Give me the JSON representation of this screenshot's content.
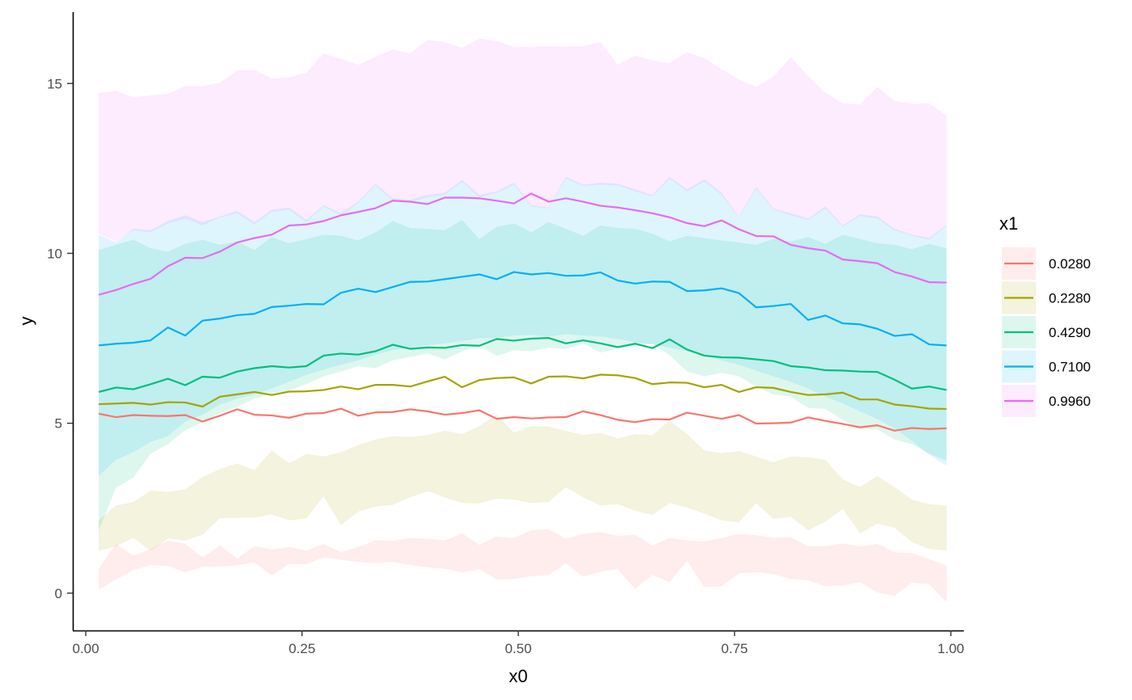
{
  "chart_data": {
    "type": "line",
    "title": "",
    "xlabel": "x0",
    "ylabel": "y",
    "xlim": [
      -0.015,
      1.015
    ],
    "ylim": [
      -1.1,
      17.1
    ],
    "x_ticks": [
      0,
      0.25,
      0.5,
      0.75,
      1.0
    ],
    "x_tick_labels": [
      "0.00",
      "0.25",
      "0.50",
      "0.75",
      "1.00"
    ],
    "y_ticks": [
      0,
      5,
      10,
      15
    ],
    "y_tick_labels": [
      "0",
      "5",
      "10",
      "15"
    ],
    "grid": false,
    "ribbon_opacity": 0.13,
    "x_start": 0.015,
    "x_step": 0.02,
    "legend": {
      "title": "x1",
      "position": "right"
    },
    "series": [
      {
        "name": "0.0280",
        "color": "#F8766D",
        "values": [
          5.28,
          5.18,
          5.24,
          5.22,
          5.21,
          5.24,
          5.05,
          5.22,
          5.41,
          5.25,
          5.23,
          5.16,
          5.28,
          5.3,
          5.43,
          5.22,
          5.32,
          5.33,
          5.41,
          5.35,
          5.25,
          5.3,
          5.38,
          5.13,
          5.18,
          5.14,
          5.17,
          5.18,
          5.35,
          5.24,
          5.1,
          5.03,
          5.12,
          5.11,
          5.31,
          5.22,
          5.13,
          5.24,
          4.99,
          5.0,
          5.02,
          5.17,
          5.07,
          4.98,
          4.88,
          4.94,
          4.78,
          4.86,
          4.83,
          4.85
        ],
        "lower": [
          0.1,
          0.4,
          0.68,
          0.82,
          0.8,
          0.61,
          0.78,
          0.78,
          0.82,
          0.9,
          0.52,
          0.86,
          0.85,
          1.05,
          0.98,
          0.92,
          0.88,
          0.92,
          0.83,
          0.76,
          0.72,
          0.6,
          0.71,
          0.4,
          0.42,
          0.5,
          0.53,
          0.88,
          0.48,
          0.63,
          0.71,
          0.12,
          0.54,
          0.32,
          0.95,
          0.18,
          0.2,
          0.58,
          0.62,
          0.56,
          0.42,
          0.38,
          0.2,
          0.22,
          0.32,
          0.02,
          -0.08,
          0.31,
          0.26,
          -0.27
        ],
        "upper": [
          0.72,
          1.45,
          1.1,
          1.3,
          1.55,
          1.45,
          1.05,
          1.4,
          1.02,
          1.38,
          1.28,
          1.36,
          1.25,
          1.45,
          1.2,
          1.36,
          1.56,
          1.54,
          1.62,
          1.6,
          1.55,
          1.76,
          1.42,
          1.67,
          1.62,
          1.85,
          1.88,
          1.6,
          1.75,
          1.8,
          1.68,
          1.72,
          1.4,
          1.62,
          1.55,
          1.52,
          1.62,
          1.74,
          1.7,
          1.63,
          1.65,
          1.38,
          1.38,
          1.46,
          1.38,
          1.45,
          1.2,
          1.18,
          1.0,
          0.82
        ]
      },
      {
        "name": "0.2280",
        "color": "#A3A500",
        "values": [
          5.56,
          5.58,
          5.6,
          5.55,
          5.62,
          5.61,
          5.49,
          5.78,
          5.85,
          5.92,
          5.83,
          5.93,
          5.94,
          5.98,
          6.08,
          6.0,
          6.13,
          6.13,
          6.08,
          6.23,
          6.37,
          6.06,
          6.27,
          6.33,
          6.35,
          6.17,
          6.37,
          6.38,
          6.32,
          6.43,
          6.41,
          6.33,
          6.15,
          6.2,
          6.19,
          6.06,
          6.13,
          5.92,
          6.06,
          6.04,
          5.92,
          5.83,
          5.85,
          5.9,
          5.7,
          5.7,
          5.55,
          5.5,
          5.43,
          5.42
        ],
        "lower": [
          1.24,
          1.38,
          1.62,
          1.24,
          1.6,
          1.55,
          1.72,
          2.2,
          2.22,
          2.22,
          2.32,
          2.14,
          2.2,
          2.85,
          2.0,
          2.4,
          2.55,
          2.6,
          2.82,
          3.0,
          2.82,
          2.65,
          2.64,
          2.78,
          2.75,
          2.65,
          2.68,
          3.12,
          2.82,
          2.58,
          2.62,
          2.42,
          2.3,
          2.65,
          2.52,
          2.34,
          2.14,
          2.08,
          2.65,
          2.18,
          2.25,
          1.85,
          2.1,
          2.48,
          1.75,
          2.05,
          1.92,
          1.5,
          1.3,
          1.25
        ],
        "upper": [
          2.15,
          2.58,
          2.68,
          3.02,
          2.98,
          3.05,
          3.42,
          3.65,
          3.82,
          3.62,
          4.2,
          3.82,
          4.1,
          4.02,
          4.15,
          4.36,
          4.52,
          4.62,
          4.6,
          4.65,
          4.78,
          4.68,
          4.92,
          5.25,
          4.72,
          4.92,
          4.9,
          4.78,
          4.65,
          4.72,
          4.55,
          4.68,
          4.65,
          5.08,
          4.68,
          4.2,
          4.12,
          4.18,
          4.02,
          3.85,
          4.02,
          4.0,
          3.92,
          3.35,
          3.12,
          3.45,
          3.12,
          2.75,
          2.62,
          2.58
        ]
      },
      {
        "name": "0.4290",
        "color": "#00BF7D",
        "values": [
          5.92,
          6.05,
          6.0,
          6.15,
          6.31,
          6.12,
          6.37,
          6.34,
          6.52,
          6.62,
          6.68,
          6.64,
          6.68,
          6.99,
          7.05,
          7.02,
          7.12,
          7.31,
          7.19,
          7.23,
          7.22,
          7.3,
          7.28,
          7.48,
          7.43,
          7.49,
          7.51,
          7.35,
          7.44,
          7.35,
          7.24,
          7.34,
          7.21,
          7.47,
          7.17,
          6.99,
          6.94,
          6.93,
          6.88,
          6.83,
          6.68,
          6.64,
          6.56,
          6.55,
          6.52,
          6.51,
          6.28,
          6.02,
          6.08,
          5.98
        ],
        "lower": [
          1.85,
          3.1,
          3.4,
          4.1,
          4.38,
          4.8,
          5.02,
          5.3,
          5.48,
          5.72,
          5.88,
          5.96,
          6.15,
          6.38,
          6.52,
          6.68,
          6.62,
          6.85,
          6.95,
          7.05,
          6.88,
          7.12,
          7.28,
          6.98,
          7.15,
          7.12,
          7.22,
          7.18,
          7.35,
          7.08,
          7.2,
          7.25,
          7.35,
          7.0,
          6.52,
          6.38,
          6.48,
          6.38,
          6.08,
          5.85,
          5.78,
          5.45,
          5.42,
          5.1,
          4.82,
          4.82,
          4.52,
          4.38,
          4.1,
          3.9
        ],
        "upper": [
          10.1,
          10.25,
          10.4,
          10.15,
          10.05,
          10.28,
          10.4,
          10.25,
          10.35,
          10.1,
          10.48,
          10.3,
          10.42,
          10.55,
          10.52,
          10.38,
          10.62,
          10.95,
          10.75,
          10.72,
          10.68,
          10.98,
          10.42,
          10.78,
          10.88,
          10.62,
          10.92,
          10.72,
          10.52,
          10.82,
          10.75,
          10.72,
          10.58,
          10.35,
          10.52,
          10.45,
          10.38,
          10.32,
          10.25,
          10.42,
          10.35,
          10.48,
          10.28,
          10.55,
          10.42,
          10.3,
          10.25,
          10.12,
          10.28,
          10.15
        ]
      },
      {
        "name": "0.7100",
        "color": "#00B0F6",
        "values": [
          7.29,
          7.34,
          7.37,
          7.44,
          7.82,
          7.58,
          8.02,
          8.08,
          8.18,
          8.22,
          8.42,
          8.46,
          8.51,
          8.5,
          8.84,
          8.96,
          8.86,
          9.01,
          9.16,
          9.17,
          9.24,
          9.31,
          9.38,
          9.24,
          9.45,
          9.38,
          9.42,
          9.34,
          9.35,
          9.44,
          9.2,
          9.11,
          9.17,
          9.16,
          8.89,
          8.91,
          8.97,
          8.83,
          8.41,
          8.45,
          8.51,
          8.04,
          8.17,
          7.94,
          7.91,
          7.78,
          7.57,
          7.62,
          7.32,
          7.29
        ],
        "lower": [
          3.45,
          3.92,
          4.15,
          4.45,
          4.62,
          5.05,
          5.25,
          5.55,
          5.72,
          5.85,
          6.02,
          6.22,
          6.42,
          6.58,
          6.72,
          6.85,
          7.02,
          7.15,
          7.22,
          7.3,
          7.35,
          7.42,
          7.5,
          7.52,
          7.58,
          7.6,
          7.55,
          7.62,
          7.58,
          7.55,
          7.48,
          7.38,
          7.32,
          7.22,
          7.12,
          6.98,
          6.85,
          6.72,
          6.55,
          6.38,
          6.22,
          6.02,
          5.78,
          5.58,
          5.35,
          5.12,
          4.85,
          4.48,
          4.08,
          3.75
        ],
        "upper": [
          10.55,
          10.32,
          10.72,
          10.68,
          10.95,
          11.12,
          10.92,
          11.08,
          11.25,
          10.92,
          11.28,
          11.35,
          10.98,
          11.42,
          11.18,
          11.52,
          12.05,
          11.62,
          11.58,
          11.72,
          11.78,
          12.15,
          11.72,
          11.82,
          12.08,
          11.42,
          11.35,
          12.25,
          12.02,
          12.08,
          12.05,
          11.88,
          11.72,
          12.25,
          11.88,
          12.18,
          11.78,
          11.08,
          11.95,
          11.32,
          11.18,
          11.02,
          11.38,
          10.82,
          11.15,
          11.08,
          10.72,
          10.55,
          10.45,
          10.85
        ]
      },
      {
        "name": "0.9960",
        "color": "#E76BF3",
        "values": [
          8.78,
          8.92,
          9.1,
          9.25,
          9.62,
          9.87,
          9.86,
          10.05,
          10.32,
          10.45,
          10.55,
          10.82,
          10.85,
          10.95,
          11.12,
          11.22,
          11.33,
          11.55,
          11.52,
          11.45,
          11.64,
          11.64,
          11.62,
          11.55,
          11.47,
          11.76,
          11.52,
          11.62,
          11.52,
          11.4,
          11.35,
          11.27,
          11.18,
          11.06,
          10.89,
          10.8,
          10.97,
          10.71,
          10.51,
          10.5,
          10.25,
          10.15,
          10.08,
          9.82,
          9.77,
          9.71,
          9.45,
          9.32,
          9.15,
          9.14
        ],
        "lower": [
          10.58,
          10.35,
          10.68,
          10.62,
          10.88,
          11.02,
          10.82,
          11.05,
          11.18,
          10.85,
          11.22,
          11.28,
          10.92,
          11.38,
          11.12,
          11.48,
          12.0,
          11.55,
          11.5,
          11.65,
          11.72,
          12.1,
          11.65,
          11.78,
          12.02,
          11.38,
          11.32,
          12.2,
          11.98,
          12.02,
          12.0,
          11.82,
          11.68,
          12.2,
          11.82,
          12.12,
          11.72,
          11.05,
          11.9,
          11.28,
          11.12,
          10.98,
          11.32,
          10.78,
          11.1,
          11.02,
          10.68,
          10.52,
          10.4,
          10.82
        ],
        "upper": [
          14.72,
          14.78,
          14.6,
          14.65,
          14.7,
          14.92,
          14.92,
          15.02,
          15.38,
          15.4,
          15.15,
          15.18,
          15.32,
          15.88,
          15.72,
          15.55,
          15.78,
          16.0,
          15.88,
          16.28,
          16.22,
          16.05,
          16.32,
          16.25,
          16.08,
          16.08,
          16.1,
          16.08,
          16.1,
          16.22,
          15.55,
          15.82,
          15.68,
          15.6,
          15.92,
          15.75,
          15.42,
          15.12,
          14.9,
          15.2,
          15.78,
          15.22,
          14.72,
          14.42,
          14.38,
          14.9,
          14.48,
          14.4,
          14.42,
          14.05
        ]
      }
    ]
  }
}
